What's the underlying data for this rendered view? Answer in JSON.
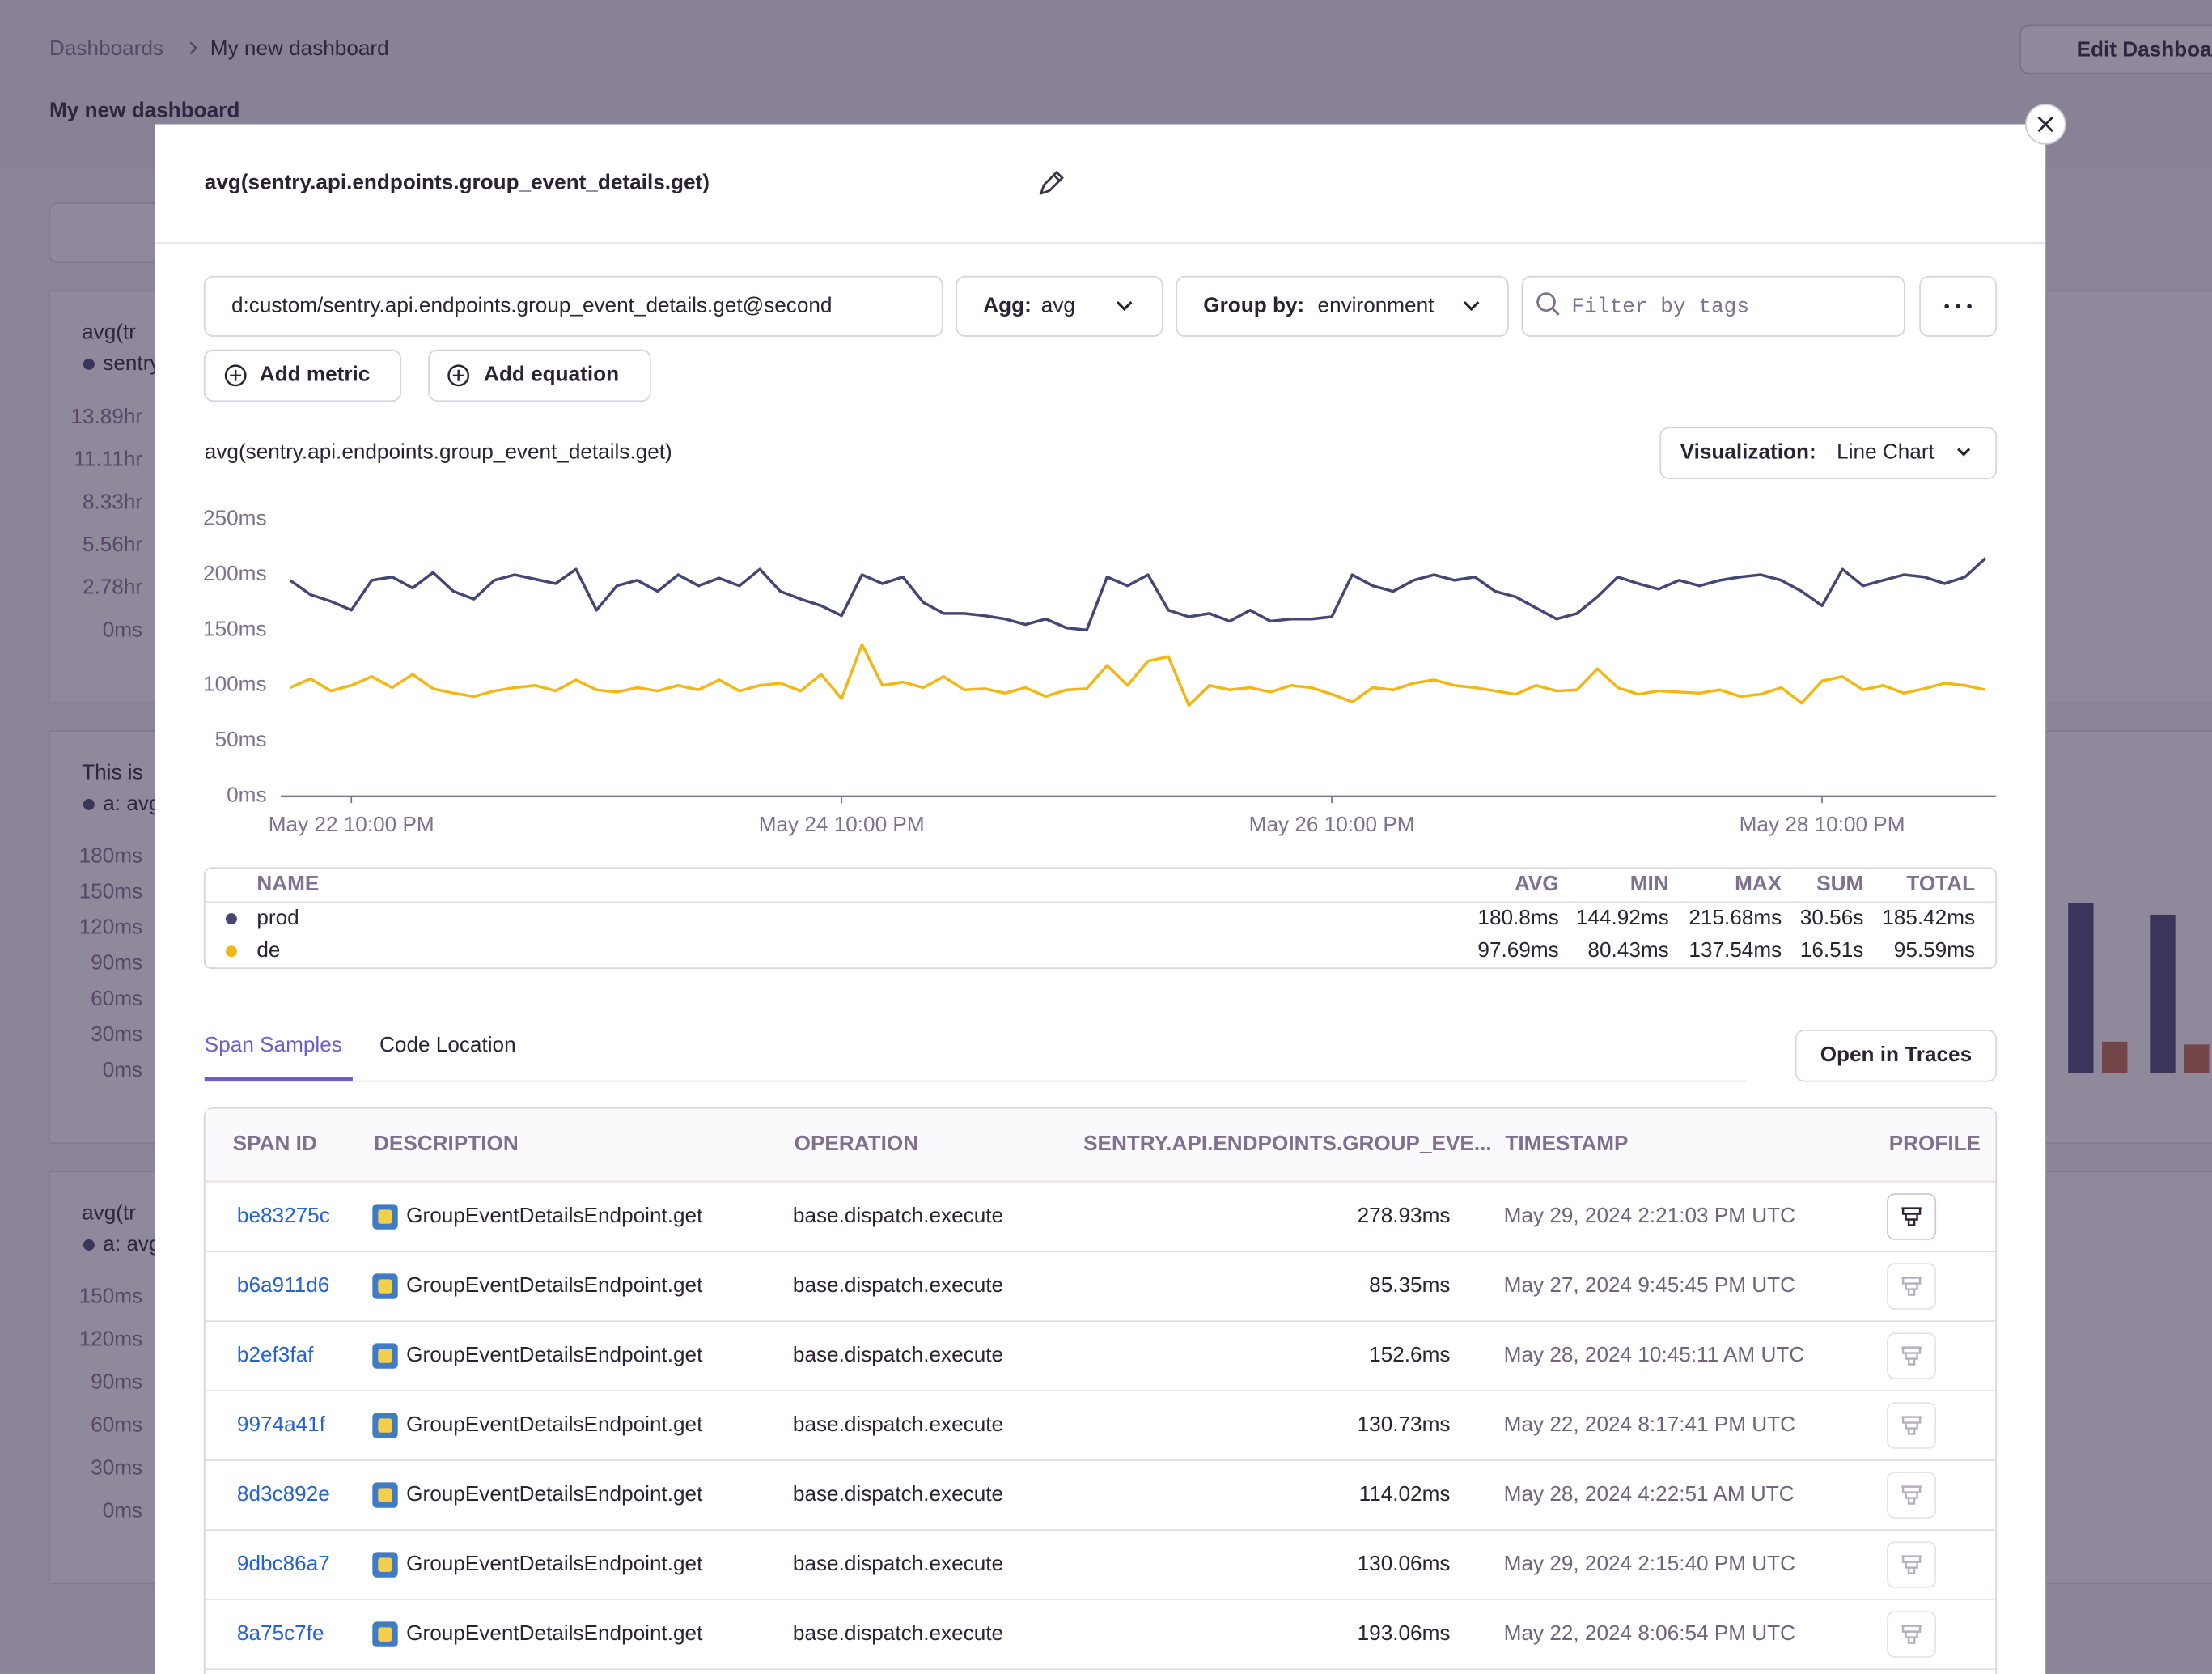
{
  "dashboard": {
    "breadcrumb": [
      "Dashboards",
      "My new dashboard"
    ],
    "title": "My new dashboard",
    "edit_button": "Edit Dashboard",
    "widgets": [
      {
        "title": "avg(tr",
        "subtitle": "sentry",
        "yticks": [
          "13.89hr",
          "11.11hr",
          "8.33hr",
          "5.56hr",
          "2.78hr",
          "0ms"
        ]
      },
      {
        "title": "This is",
        "subtitle": "a: avg",
        "yticks": [
          "180ms",
          "150ms",
          "120ms",
          "90ms",
          "60ms",
          "30ms",
          "0ms"
        ]
      },
      {
        "title": "avg(tr",
        "subtitle": "a: avg",
        "yticks": [
          "150ms",
          "120ms",
          "90ms",
          "60ms",
          "30ms",
          "0ms"
        ]
      }
    ]
  },
  "modal": {
    "title": "avg(sentry.api.endpoints.group_event_details.get)",
    "query": {
      "metric": "d:custom/sentry.api.endpoints.group_event_details.get@second",
      "agg_label": "Agg:",
      "agg_value": "avg",
      "group_label": "Group by:",
      "group_value": "environment",
      "filter_placeholder": "Filter by tags"
    },
    "buttons": [
      "Add metric",
      "Add equation"
    ],
    "visualization_label": "Visualization:",
    "visualization_value": "Line Chart"
  },
  "chart_data": {
    "type": "line",
    "title": "avg(sentry.api.endpoints.group_event_details.get)",
    "categories": [
      null,
      null,
      null,
      "May 22 10:00 PM",
      null,
      null,
      null,
      null,
      null,
      null,
      null,
      null,
      null,
      null,
      null,
      null,
      null,
      null,
      null,
      null,
      null,
      null,
      null,
      null,
      null,
      null,
      null,
      "May 24 10:00 PM",
      null,
      null,
      null,
      null,
      null,
      null,
      null,
      null,
      null,
      null,
      null,
      null,
      null,
      null,
      null,
      null,
      null,
      null,
      null,
      null,
      null,
      null,
      null,
      "May 26 10:00 PM",
      null,
      null,
      null,
      null,
      null,
      null,
      null,
      null,
      null,
      null,
      null,
      null,
      null,
      null,
      null,
      null,
      null,
      null,
      null,
      null,
      null,
      null,
      null,
      "May 28 10:00 PM",
      null,
      null,
      null,
      null,
      null,
      null,
      null,
      null
    ],
    "series": [
      {
        "name": "prod",
        "color": "#444674",
        "values": [
          195,
          182,
          176,
          168,
          195,
          198,
          188,
          202,
          185,
          178,
          195,
          200,
          196,
          192,
          205,
          168,
          190,
          195,
          185,
          200,
          190,
          197,
          190,
          205,
          185,
          178,
          172,
          163,
          200,
          192,
          198,
          175,
          165,
          165,
          163,
          160,
          155,
          160,
          152,
          150,
          198,
          190,
          200,
          168,
          162,
          165,
          158,
          168,
          158,
          160,
          160,
          162,
          200,
          190,
          185,
          195,
          200,
          195,
          198,
          185,
          180,
          170,
          160,
          165,
          180,
          198,
          192,
          187,
          195,
          190,
          195,
          198,
          200,
          195,
          185,
          172,
          205,
          190,
          195,
          200,
          198,
          192,
          198,
          215
        ]
      },
      {
        "name": "de",
        "color": "#f2b712",
        "values": [
          98,
          106,
          95,
          100,
          108,
          98,
          110,
          97,
          93,
          90,
          95,
          98,
          100,
          95,
          105,
          96,
          94,
          98,
          95,
          100,
          96,
          105,
          95,
          100,
          102,
          95,
          110,
          88,
          137,
          100,
          103,
          98,
          108,
          96,
          97,
          93,
          98,
          90,
          96,
          97,
          118,
          100,
          122,
          126,
          82,
          100,
          96,
          98,
          94,
          100,
          98,
          92,
          85,
          98,
          96,
          102,
          105,
          100,
          98,
          95,
          92,
          100,
          95,
          96,
          115,
          98,
          92,
          95,
          94,
          93,
          96,
          90,
          92,
          98,
          84,
          104,
          108,
          96,
          100,
          93,
          97,
          102,
          100,
          96
        ]
      }
    ],
    "ylim": [
      0,
      250
    ],
    "yticks": [
      {
        "value": 0,
        "label": "0ms"
      },
      {
        "value": 50,
        "label": "50ms"
      },
      {
        "value": 100,
        "label": "100ms"
      },
      {
        "value": 150,
        "label": "150ms"
      },
      {
        "value": 200,
        "label": "200ms"
      },
      {
        "value": 250,
        "label": "250ms"
      }
    ],
    "grid": false
  },
  "summary": {
    "columns": [
      "NAME",
      "AVG",
      "MIN",
      "MAX",
      "SUM",
      "TOTAL"
    ],
    "rows": [
      [
        "180.8ms",
        "144.92ms",
        "215.68ms",
        "30.56s",
        "185.42ms"
      ],
      [
        "97.69ms",
        "80.43ms",
        "137.54ms",
        "16.51s",
        "95.59ms"
      ]
    ]
  },
  "tabs": [
    "Span Samples",
    "Code Location"
  ],
  "open_traces": "Open in Traces",
  "spans": {
    "columns": [
      "SPAN ID",
      "DESCRIPTION",
      "OPERATION",
      "SENTRY.API.ENDPOINTS.GROUP_EVE...",
      "TIMESTAMP",
      "PROFILE"
    ],
    "rows": [
      [
        "be83275c",
        "GroupEventDetailsEndpoint.get",
        "base.dispatch.execute",
        "278.93ms",
        "May 29, 2024 2:21:03 PM UTC"
      ],
      [
        "b6a911d6",
        "GroupEventDetailsEndpoint.get",
        "base.dispatch.execute",
        "85.35ms",
        "May 27, 2024 9:45:45 PM UTC"
      ],
      [
        "b2ef3faf",
        "GroupEventDetailsEndpoint.get",
        "base.dispatch.execute",
        "152.6ms",
        "May 28, 2024 10:45:11 AM UTC"
      ],
      [
        "9974a41f",
        "GroupEventDetailsEndpoint.get",
        "base.dispatch.execute",
        "130.73ms",
        "May 22, 2024 8:17:41 PM UTC"
      ],
      [
        "8d3c892e",
        "GroupEventDetailsEndpoint.get",
        "base.dispatch.execute",
        "114.02ms",
        "May 28, 2024 4:22:51 AM UTC"
      ],
      [
        "9dbc86a7",
        "GroupEventDetailsEndpoint.get",
        "base.dispatch.execute",
        "130.06ms",
        "May 29, 2024 2:15:40 PM UTC"
      ],
      [
        "8a75c7fe",
        "GroupEventDetailsEndpoint.get",
        "base.dispatch.execute",
        "193.06ms",
        "May 22, 2024 8:06:54 PM UTC"
      ]
    ]
  }
}
